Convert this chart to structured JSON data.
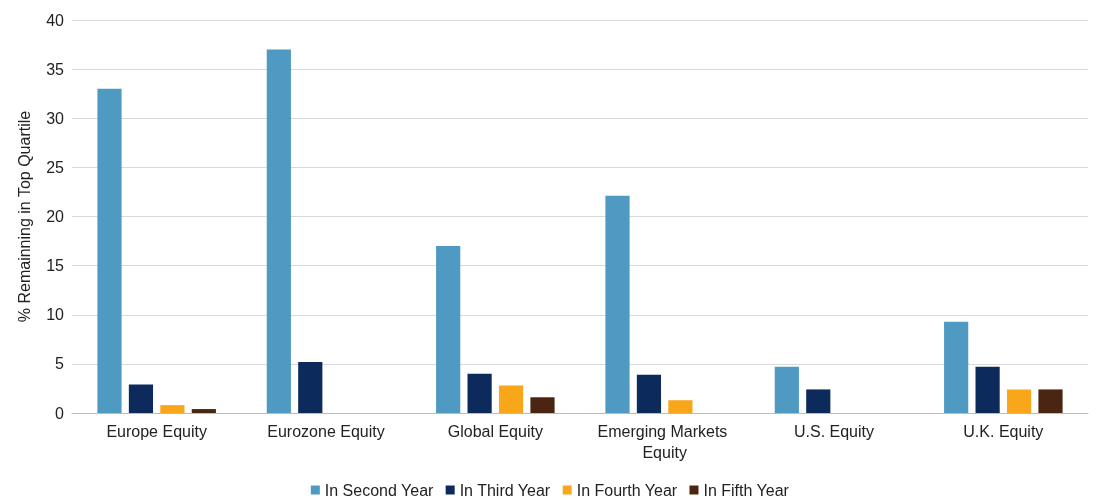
{
  "chart_data": {
    "type": "bar",
    "ylabel": "% Remainning in Top Quartile",
    "categories": [
      "Europe Equity",
      "Eurozone Equity",
      "Global Equity",
      "Emerging Markets Equity",
      "U.S. Equity",
      "U.K. Equity"
    ],
    "series": [
      {
        "name": "In Second Year",
        "color": "#4e9ac2",
        "values": [
          33,
          37,
          17,
          22.1,
          4.7,
          9.3
        ]
      },
      {
        "name": "In Third Year",
        "color": "#0c2a5c",
        "values": [
          2.9,
          5.2,
          4.0,
          3.9,
          2.4,
          4.7
        ]
      },
      {
        "name": "In Fourth Year",
        "color": "#f9a61a",
        "values": [
          0.8,
          0,
          2.8,
          1.3,
          0,
          2.4
        ]
      },
      {
        "name": "In Fifth Year",
        "color": "#4a2511",
        "values": [
          0.4,
          0,
          1.6,
          0,
          0,
          2.4
        ]
      }
    ],
    "ylim": [
      0,
      40
    ],
    "yticks": [
      0,
      5,
      10,
      15,
      20,
      25,
      30,
      35,
      40
    ],
    "grid": "y",
    "legend": "bottom"
  }
}
